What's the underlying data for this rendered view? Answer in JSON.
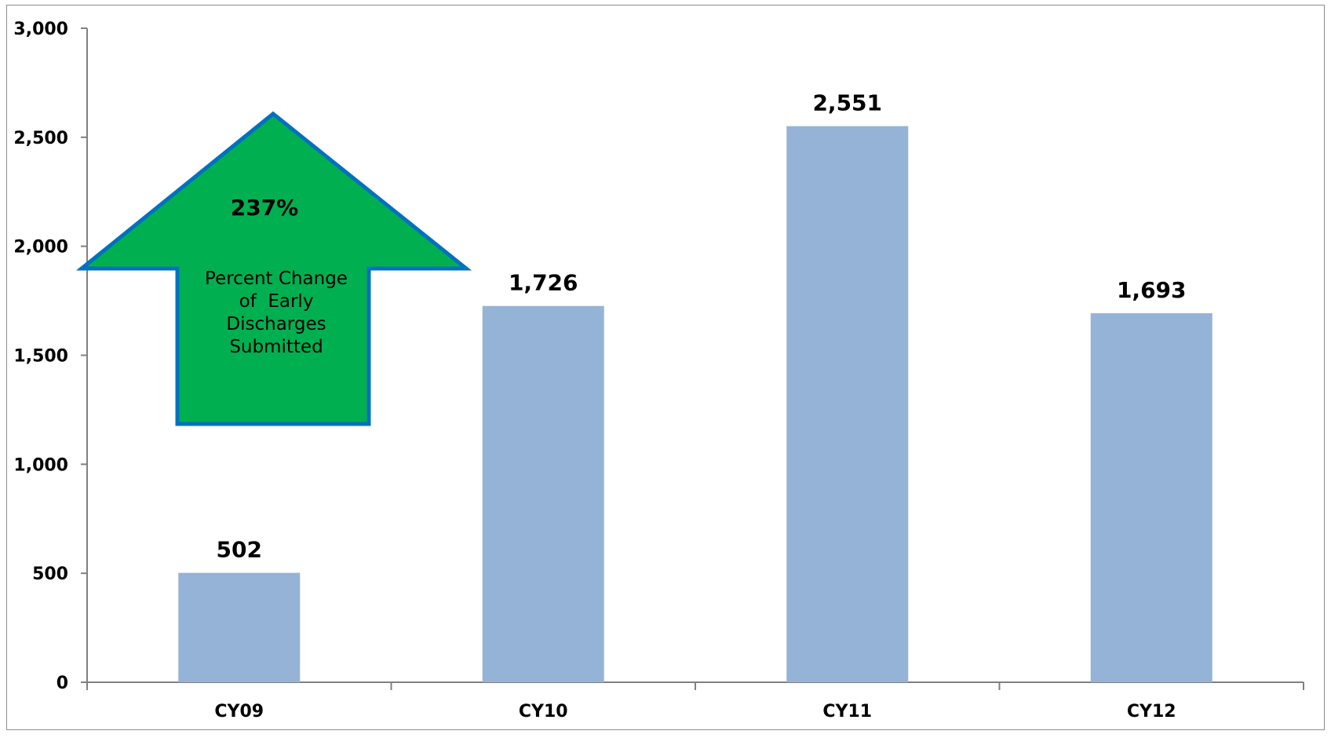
{
  "chart_data": {
    "type": "bar",
    "title": "",
    "xlabel": "",
    "ylabel": "",
    "categories": [
      "CY09",
      "CY10",
      "CY11",
      "CY12"
    ],
    "values": [
      502,
      1726,
      2551,
      1693
    ],
    "data_labels": [
      "502",
      "1,726",
      "2,551",
      "1,693"
    ],
    "ylim": [
      0,
      3000
    ],
    "yticks": [
      0,
      500,
      1000,
      1500,
      2000,
      2500,
      3000
    ],
    "ytick_labels": [
      "0",
      "500",
      "1,000",
      "1,500",
      "2,000",
      "2,500",
      "3,000"
    ],
    "grid": false,
    "legend": "none",
    "bar_color": "#95b3d7",
    "axis_color": "#808080",
    "annotation": {
      "shape": "up-arrow",
      "fill": "#00b050",
      "stroke": "#0070c0",
      "percent_text": "237%",
      "caption_lines": [
        "Percent Change",
        "of  Early",
        "Discharges",
        "Submitted"
      ]
    }
  }
}
